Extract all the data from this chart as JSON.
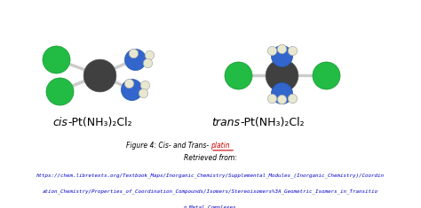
{
  "background_color": "#ffffff",
  "title_line1": "Figure 4: Cis- and Trans- ",
  "title_highlight": "platin",
  "title_line2": "Retrieved from:",
  "url_line1": "https://chem.libretexts.org/Textbook_Maps/Inorganic_Chemistry/Supplemental_Modules_(Inorganic_Chemistry)/Coordin",
  "url_line2": "ation_Chemistry/Properties_of_Coordination_Compounds/Isomers/Stereoisomers%3A_Geometric_Isomers_in_Transitio",
  "url_line3": "n_Metal_Complexes",
  "label_cis": "cis",
  "label_cis2": "-Pt(NH₃)₂Cl₂",
  "label_trans": "trans",
  "label_trans2": "-Pt(NH₃)₂Cl₂",
  "colors": {
    "Pt": "#404040",
    "Cl": "#22bb44",
    "N": "#3366cc",
    "H": "#e8e8d0",
    "bond": "#cccccc"
  }
}
